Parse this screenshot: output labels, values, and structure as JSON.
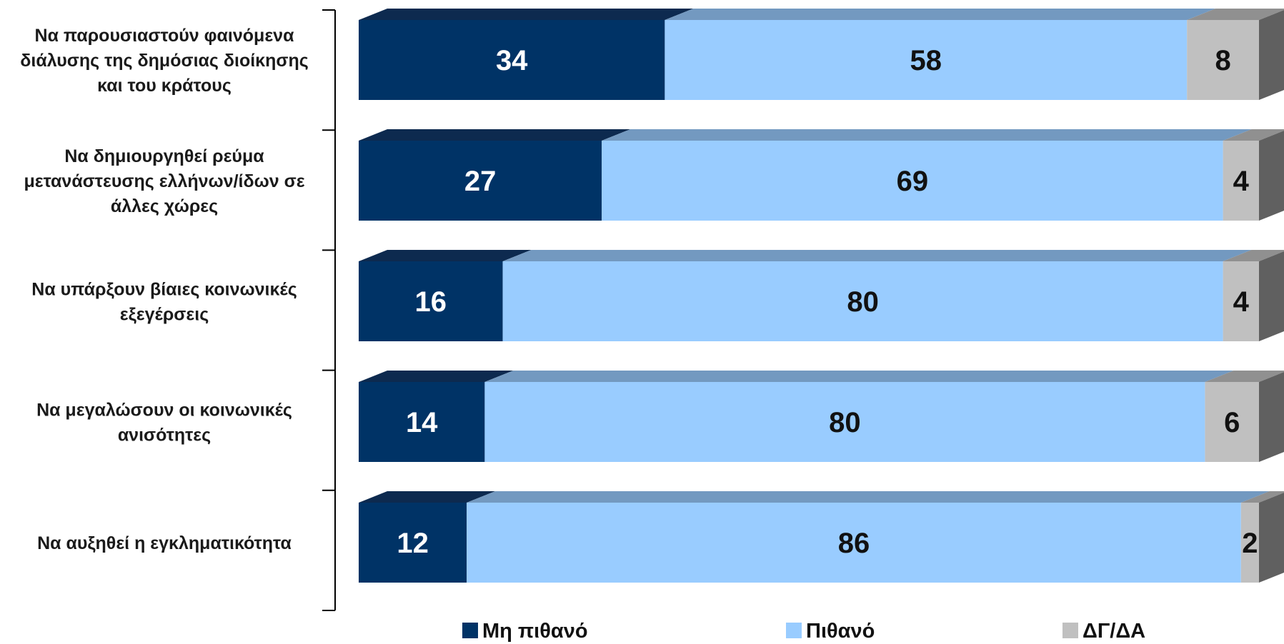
{
  "chart_data": {
    "type": "bar",
    "orientation": "horizontal",
    "stacked": true,
    "three_d": true,
    "title": "",
    "xlabel": "",
    "ylabel": "",
    "xlim": [
      0,
      100
    ],
    "grid": false,
    "legend_position": "bottom",
    "categories": [
      [
        "Να παρουσιαστούν φαινόμενα",
        "διάλυσης της δημόσιας διοίκησης",
        "και του κράτους"
      ],
      [
        "Να δημιουργηθεί ρεύμα",
        "μετανάστευσης ελλήνων/ίδων σε",
        "άλλες χώρες"
      ],
      [
        "Να υπάρξουν βίαιες κοινωνικές",
        "εξεγέρσεις"
      ],
      [
        "Να μεγαλώσουν οι κοινωνικές",
        "ανισότητες"
      ],
      [
        "Να αυξηθεί η εγκληματικότητα"
      ]
    ],
    "series": [
      {
        "name": "Μη πιθανό",
        "color": "#003366",
        "top_color": "#0d2a4f",
        "values": [
          34,
          27,
          16,
          14,
          12
        ]
      },
      {
        "name": "Πιθανό",
        "color": "#99ccff",
        "top_color": "#7399c0",
        "values": [
          58,
          69,
          80,
          80,
          86
        ]
      },
      {
        "name": "ΔΓ/ΔΑ",
        "color": "#c0c0c0",
        "top_color": "#909090",
        "values": [
          8,
          4,
          4,
          6,
          2
        ]
      }
    ],
    "side_color": "#606060"
  }
}
